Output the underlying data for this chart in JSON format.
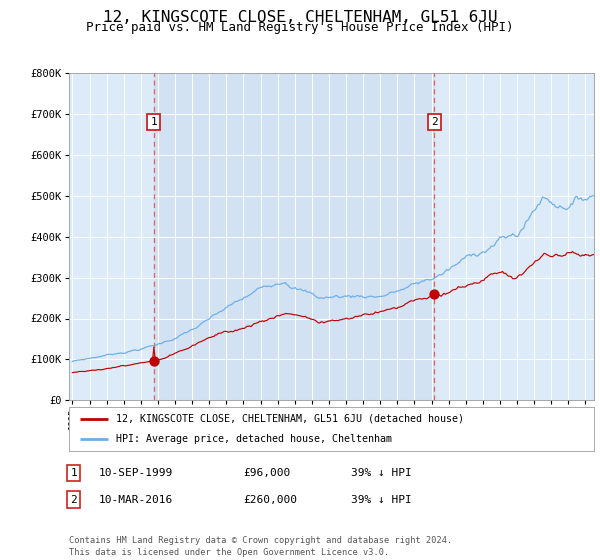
{
  "title": "12, KINGSCOTE CLOSE, CHELTENHAM, GL51 6JU",
  "subtitle": "Price paid vs. HM Land Registry's House Price Index (HPI)",
  "title_fontsize": 11.5,
  "subtitle_fontsize": 9,
  "bg_color": "#ddeaf7",
  "fig_bg_color": "#ffffff",
  "grid_color": "#c8d8ea",
  "hpi_color": "#6aaee8",
  "price_color": "#c00000",
  "dashed_color": "#e06060",
  "fill_color": "#e8f0f8",
  "sale1_date_num": 1999.75,
  "sale1_price": 96000,
  "sale2_date_num": 2016.17,
  "sale2_price": 260000,
  "ylim": [
    0,
    800000
  ],
  "xlim_start": 1994.8,
  "xlim_end": 2025.5,
  "ylabel_ticks": [
    0,
    100000,
    200000,
    300000,
    400000,
    500000,
    600000,
    700000,
    800000
  ],
  "ylabel_labels": [
    "£0",
    "£100K",
    "£200K",
    "£300K",
    "£400K",
    "£500K",
    "£600K",
    "£700K",
    "£800K"
  ],
  "xtick_years": [
    1995,
    1996,
    1997,
    1998,
    1999,
    2000,
    2001,
    2002,
    2003,
    2004,
    2005,
    2006,
    2007,
    2008,
    2009,
    2010,
    2011,
    2012,
    2013,
    2014,
    2015,
    2016,
    2017,
    2018,
    2019,
    2020,
    2021,
    2022,
    2023,
    2024,
    2025
  ],
  "legend_label_price": "12, KINGSCOTE CLOSE, CHELTENHAM, GL51 6JU (detached house)",
  "legend_label_hpi": "HPI: Average price, detached house, Cheltenham",
  "annotation1_label": "1",
  "annotation1_date": "10-SEP-1999",
  "annotation1_price_str": "£96,000",
  "annotation1_pct": "39% ↓ HPI",
  "annotation2_label": "2",
  "annotation2_date": "10-MAR-2016",
  "annotation2_price_str": "£260,000",
  "annotation2_pct": "39% ↓ HPI",
  "footer": "Contains HM Land Registry data © Crown copyright and database right 2024.\nThis data is licensed under the Open Government Licence v3.0."
}
